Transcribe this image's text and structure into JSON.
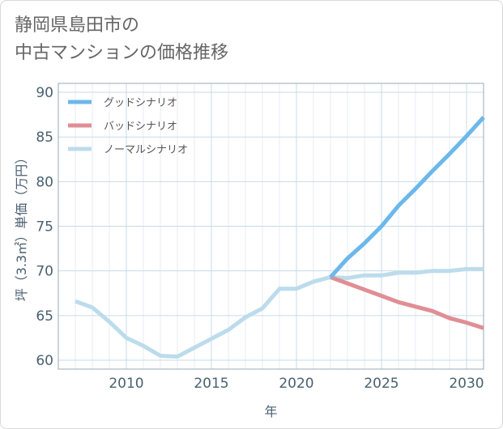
{
  "title_lines": [
    "静岡県島田市の",
    "中古マンションの価格推移"
  ],
  "chart_data": {
    "type": "line",
    "xlabel": "年",
    "ylabel": "坪（3.3㎡）単価（万円）",
    "xlim": [
      2006,
      2031
    ],
    "ylim": [
      59,
      91
    ],
    "xticks": [
      2010,
      2015,
      2020,
      2025,
      2030
    ],
    "yticks": [
      60,
      65,
      70,
      75,
      80,
      85,
      90
    ],
    "grid": true,
    "legend_position": "top-left",
    "series": [
      {
        "name": "グッドシナリオ",
        "color": "#6cb8ea",
        "x": [
          2022,
          2023,
          2024,
          2025,
          2026,
          2027,
          2028,
          2029,
          2030,
          2031
        ],
        "y": [
          69.3,
          71.4,
          73.1,
          75.0,
          77.3,
          79.2,
          81.2,
          83.1,
          85.1,
          87.2
        ]
      },
      {
        "name": "バッドシナリオ",
        "color": "#e08e95",
        "x": [
          2022,
          2023,
          2024,
          2025,
          2026,
          2027,
          2028,
          2029,
          2030,
          2031
        ],
        "y": [
          69.3,
          68.6,
          67.9,
          67.2,
          66.5,
          66.0,
          65.5,
          64.7,
          64.2,
          63.6
        ]
      },
      {
        "name": "ノーマルシナリオ",
        "color": "#bcdcec",
        "x": [
          2007,
          2008,
          2009,
          2010,
          2011,
          2012,
          2013,
          2014,
          2015,
          2016,
          2017,
          2018,
          2019,
          2020,
          2021,
          2022,
          2023,
          2024,
          2025,
          2026,
          2027,
          2028,
          2029,
          2030,
          2031
        ],
        "y": [
          66.6,
          65.9,
          64.3,
          62.5,
          61.6,
          60.5,
          60.4,
          61.4,
          62.4,
          63.4,
          64.8,
          65.8,
          68.0,
          68.0,
          68.8,
          69.3,
          69.2,
          69.5,
          69.5,
          69.8,
          69.8,
          70.0,
          70.0,
          70.2,
          70.2
        ]
      }
    ]
  }
}
